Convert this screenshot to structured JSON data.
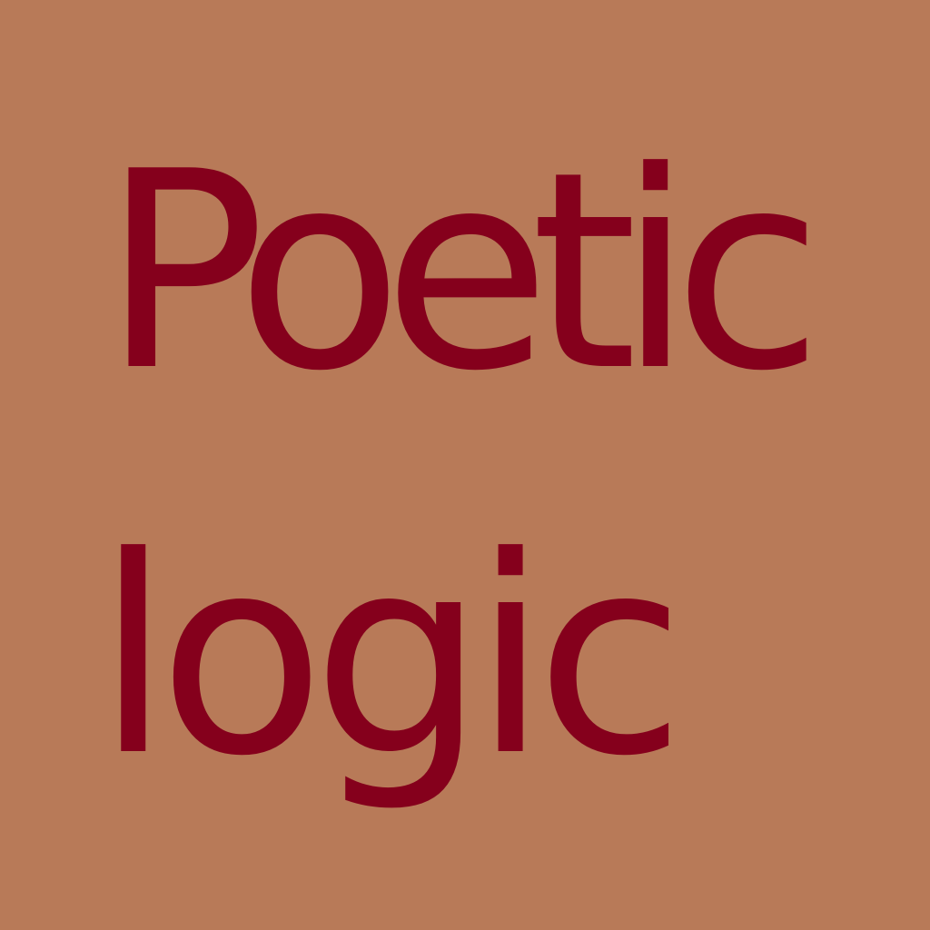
{
  "colors": {
    "background": "#b87a58",
    "text": "#85001c"
  },
  "poster": {
    "line1": "Poetic",
    "line2": "logic"
  }
}
